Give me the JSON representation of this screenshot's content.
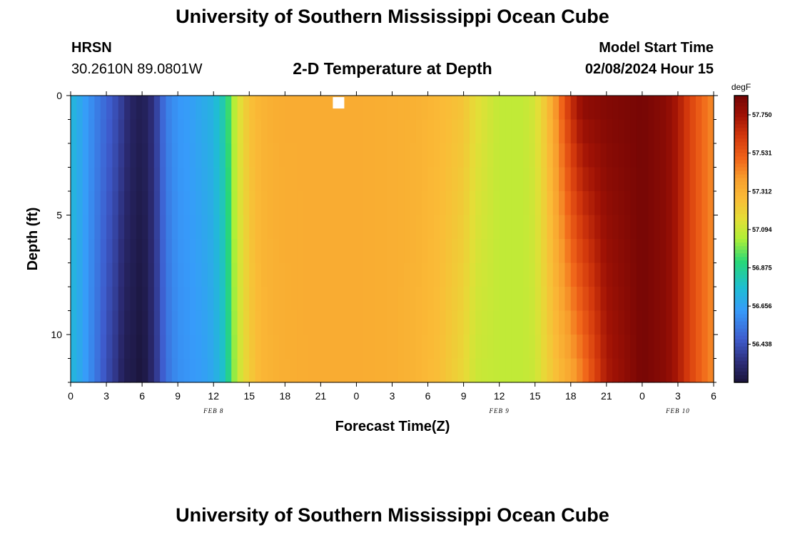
{
  "header": {
    "title": "University of Southern Mississippi Ocean Cube",
    "station_name": "HRSN",
    "station_coords": "30.2610N  89.0801W",
    "plot_title": "2-D Temperature at Depth",
    "model_label": "Model Start Time",
    "model_time": "02/08/2024 Hour 15"
  },
  "footer": {
    "title": "University of Southern Mississippi Ocean Cube"
  },
  "chart_data": {
    "type": "heatmap",
    "xlabel": "Forecast Time(Z)",
    "ylabel": "Depth (ft)",
    "x_hours_range": [
      0,
      54
    ],
    "x_tick_labels": [
      "0",
      "3",
      "6",
      "9",
      "12",
      "15",
      "18",
      "21",
      "0",
      "3",
      "6",
      "9",
      "12",
      "15",
      "18",
      "21",
      "0",
      "3",
      "6"
    ],
    "date_labels": [
      {
        "label": "FEB 8",
        "hour": 12
      },
      {
        "label": "FEB 9",
        "hour": 36
      },
      {
        "label": "FEB 10",
        "hour": 51
      }
    ],
    "y_range": [
      0,
      12
    ],
    "y_ticks": [
      0,
      5,
      10
    ],
    "colorbar": {
      "unit": "degF",
      "min": 56.22,
      "max": 57.86,
      "tick_values": [
        56.438,
        56.656,
        56.875,
        57.094,
        57.312,
        57.531,
        57.75
      ],
      "tick_labels": [
        "56.438",
        "56.656",
        "56.875",
        "57.094",
        "57.312",
        "57.531",
        "57.750"
      ]
    },
    "depth_levels_ft": [
      0.5,
      1.5,
      2.5,
      3.5,
      4.5,
      5.5,
      6.5,
      7.5,
      8.5,
      9.5,
      10.5,
      11.5
    ],
    "profile_hours": [
      0,
      1,
      2,
      3,
      4,
      4.5,
      5,
      6,
      7,
      8,
      9,
      10,
      11,
      12,
      13,
      13.5,
      14,
      15,
      16,
      17,
      18,
      20,
      24,
      27,
      29,
      31,
      33,
      33.5,
      34,
      36,
      38,
      39,
      40,
      41,
      42,
      43,
      45,
      48,
      50,
      51,
      52,
      53,
      54
    ],
    "surface_temps_degF": [
      56.74,
      56.66,
      56.57,
      56.49,
      56.41,
      56.36,
      56.3,
      56.26,
      56.35,
      56.55,
      56.62,
      56.64,
      56.68,
      56.72,
      56.85,
      57.0,
      57.12,
      57.25,
      57.3,
      57.32,
      57.33,
      57.33,
      57.33,
      57.32,
      57.31,
      57.28,
      57.24,
      57.2,
      57.16,
      57.08,
      57.08,
      57.12,
      57.25,
      57.45,
      57.65,
      57.78,
      57.82,
      57.85,
      57.8,
      57.72,
      57.6,
      57.5,
      57.42
    ],
    "bottom_temps_degF": [
      56.74,
      56.66,
      56.55,
      56.43,
      56.34,
      56.26,
      56.26,
      56.22,
      56.33,
      56.52,
      56.6,
      56.62,
      56.64,
      56.68,
      56.8,
      56.95,
      57.08,
      57.22,
      57.29,
      57.31,
      57.32,
      57.33,
      57.33,
      57.32,
      57.3,
      57.26,
      57.18,
      57.14,
      57.1,
      57.08,
      57.08,
      57.1,
      57.2,
      57.28,
      57.36,
      57.46,
      57.72,
      57.85,
      57.8,
      57.72,
      57.6,
      57.5,
      57.42
    ],
    "marker": {
      "hour": 22.5,
      "depth_ft": 0.3
    }
  }
}
